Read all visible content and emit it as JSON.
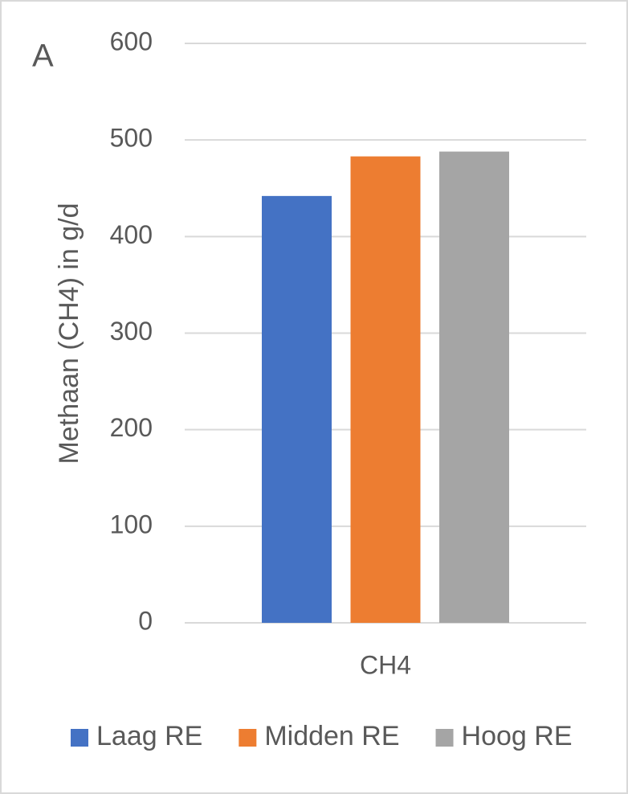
{
  "chart_data": {
    "type": "bar",
    "annotation": "A",
    "ylabel": "Methaan (CH4) in g/d",
    "categories": [
      "CH4"
    ],
    "series": [
      {
        "name": "Laag RE",
        "color": "#4472c4",
        "values": [
          442
        ]
      },
      {
        "name": "Midden RE",
        "color": "#ed7d31",
        "values": [
          483
        ]
      },
      {
        "name": "Hoog RE",
        "color": "#a5a5a5",
        "values": [
          488
        ]
      }
    ],
    "ylim": [
      0,
      600
    ],
    "yticks": [
      0,
      100,
      200,
      300,
      400,
      500,
      600
    ],
    "grid": true,
    "legend": "bottom"
  }
}
